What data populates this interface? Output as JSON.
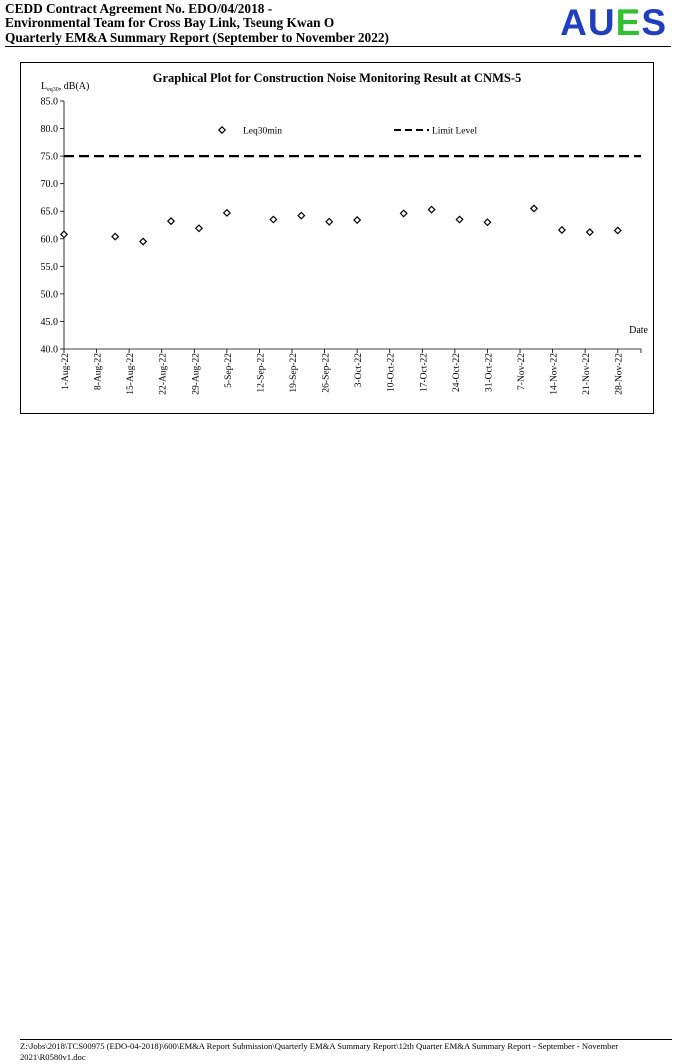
{
  "header": {
    "line1": "CEDD Contract Agreement No. EDO/04/2018 -",
    "line2": "Environmental Team for Cross Bay Link, Tseung Kwan O",
    "line3": "Quarterly EM&A Summary Report (September to November 2022)",
    "logo": {
      "a": "A",
      "u": "U",
      "e": "E",
      "s": "S"
    },
    "logo_colors": {
      "blue": "#1f3fbf",
      "green": "#33c033"
    }
  },
  "chart_data": {
    "type": "scatter",
    "title": "Graphical Plot for Construction Noise Monitoring Result at CNMS-5",
    "ylabel": "dB(A)",
    "ylabel_symbol": "L",
    "ylabel_subscript": "eq30",
    "xlabel": "Date",
    "ylim": [
      40.0,
      85.0
    ],
    "yticks": [
      "40.0",
      "45.0",
      "50.0",
      "55.0",
      "60.0",
      "65.0",
      "70.0",
      "75.0",
      "80.0",
      "85.0"
    ],
    "xlim": [
      "1-Aug-22",
      "3-Dec-22"
    ],
    "xticks": [
      "1-Aug-22",
      "8-Aug-22",
      "15-Aug-22",
      "22-Aug-22",
      "29-Aug-22",
      "5-Sep-22",
      "12-Sep-22",
      "19-Sep-22",
      "26-Sep-22",
      "3-Oct-22",
      "10-Oct-22",
      "17-Oct-22",
      "24-Oct-22",
      "31-Oct-22",
      "7-Nov-22",
      "14-Nov-22",
      "21-Nov-22",
      "28-Nov-22"
    ],
    "grid": false,
    "legend_placement": "top",
    "series": [
      {
        "name": "Leq30min",
        "marker": "diamond",
        "points": [
          {
            "x": "1-Aug-22",
            "y": 60.8
          },
          {
            "x": "12-Aug-22",
            "y": 60.4
          },
          {
            "x": "18-Aug-22",
            "y": 59.5
          },
          {
            "x": "24-Aug-22",
            "y": 63.2
          },
          {
            "x": "30-Aug-22",
            "y": 61.9
          },
          {
            "x": "5-Sep-22",
            "y": 64.7
          },
          {
            "x": "15-Sep-22",
            "y": 63.5
          },
          {
            "x": "21-Sep-22",
            "y": 64.2
          },
          {
            "x": "27-Sep-22",
            "y": 63.1
          },
          {
            "x": "3-Oct-22",
            "y": 63.4
          },
          {
            "x": "13-Oct-22",
            "y": 64.6
          },
          {
            "x": "19-Oct-22",
            "y": 65.3
          },
          {
            "x": "25-Oct-22",
            "y": 63.5
          },
          {
            "x": "31-Oct-22",
            "y": 63.0
          },
          {
            "x": "10-Nov-22",
            "y": 65.5
          },
          {
            "x": "16-Nov-22",
            "y": 61.6
          },
          {
            "x": "22-Nov-22",
            "y": 61.2
          },
          {
            "x": "28-Nov-22",
            "y": 61.5
          }
        ]
      },
      {
        "name": "Limit Level",
        "style": "dashed",
        "value": 75.0
      }
    ]
  },
  "footer": {
    "path": "Z:\\Jobs\\2018\\TCS00975 (EDO-04-2018)\\600\\EM&A Report Submission\\Quarterly EM&A Summary Report\\12th Quarter EM&A Summary Report - September - November 2021\\R0580v1.doc"
  }
}
